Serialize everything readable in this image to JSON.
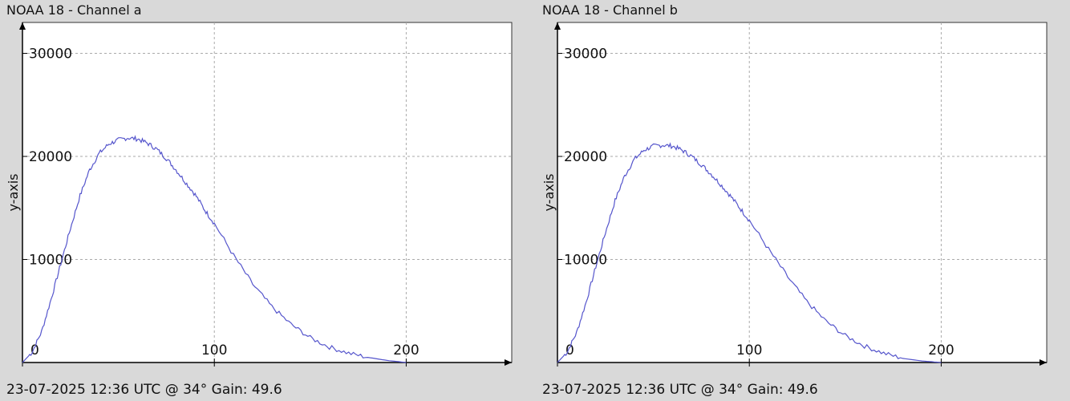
{
  "colors": {
    "background": "#d9d9d9",
    "plot_bg": "#ffffff",
    "line": "#5555cc",
    "grid": "#aaaaaa",
    "axis": "#000000"
  },
  "chart_data": [
    {
      "type": "line",
      "title": "NOAA 18 - Channel a",
      "footer": "23-07-2025 12:36 UTC @ 34° Gain: 49.6",
      "ylabel": "y-axis",
      "xlabel": "",
      "xlim": [
        0,
        255
      ],
      "ylim": [
        0,
        33000
      ],
      "xticks": [
        0,
        100,
        200
      ],
      "yticks": [
        10000,
        20000,
        30000
      ],
      "grid": true,
      "series": [
        {
          "x": [
            0,
            5,
            10,
            15,
            20,
            25,
            30,
            35,
            40,
            45,
            50,
            55,
            60,
            65,
            70,
            75,
            80,
            85,
            90,
            95,
            100,
            110,
            120,
            130,
            140,
            150,
            160,
            170,
            180,
            190,
            200
          ],
          "y": [
            0,
            1000,
            3000,
            6200,
            9600,
            13000,
            16200,
            18700,
            20300,
            21200,
            21600,
            21800,
            21700,
            21300,
            20700,
            19800,
            18700,
            17500,
            16300,
            14800,
            13500,
            10400,
            7600,
            5400,
            3700,
            2400,
            1500,
            900,
            500,
            200,
            0
          ]
        }
      ]
    },
    {
      "type": "line",
      "title": "NOAA 18 - Channel b",
      "footer": "23-07-2025 12:36 UTC @ 34° Gain: 49.6",
      "ylabel": "y-axis",
      "xlabel": "",
      "xlim": [
        0,
        255
      ],
      "ylim": [
        0,
        33000
      ],
      "xticks": [
        0,
        100,
        200
      ],
      "yticks": [
        10000,
        20000,
        30000
      ],
      "grid": true,
      "series": [
        {
          "x": [
            0,
            5,
            10,
            15,
            20,
            25,
            30,
            35,
            40,
            45,
            50,
            55,
            60,
            65,
            70,
            75,
            80,
            85,
            90,
            95,
            100,
            110,
            120,
            130,
            140,
            150,
            160,
            170,
            180,
            190,
            200
          ],
          "y": [
            0,
            1000,
            2900,
            5900,
            9300,
            12600,
            15700,
            18100,
            19700,
            20600,
            21000,
            21100,
            21000,
            20600,
            20000,
            19200,
            18300,
            17300,
            16200,
            15000,
            13800,
            11000,
            8300,
            5900,
            4000,
            2600,
            1600,
            900,
            400,
            150,
            0
          ]
        }
      ]
    }
  ]
}
